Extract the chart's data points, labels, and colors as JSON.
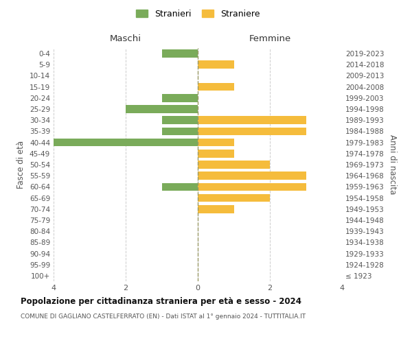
{
  "age_groups": [
    "100+",
    "95-99",
    "90-94",
    "85-89",
    "80-84",
    "75-79",
    "70-74",
    "65-69",
    "60-64",
    "55-59",
    "50-54",
    "45-49",
    "40-44",
    "35-39",
    "30-34",
    "25-29",
    "20-24",
    "15-19",
    "10-14",
    "5-9",
    "0-4"
  ],
  "birth_years": [
    "≤ 1923",
    "1924-1928",
    "1929-1933",
    "1934-1938",
    "1939-1943",
    "1944-1948",
    "1949-1953",
    "1954-1958",
    "1959-1963",
    "1964-1968",
    "1969-1973",
    "1974-1978",
    "1979-1983",
    "1984-1988",
    "1989-1993",
    "1994-1998",
    "1999-2003",
    "2004-2008",
    "2009-2013",
    "2014-2018",
    "2019-2023"
  ],
  "males": [
    0,
    0,
    0,
    0,
    0,
    0,
    0,
    0,
    1,
    0,
    0,
    0,
    4,
    1,
    1,
    2,
    1,
    0,
    0,
    0,
    1
  ],
  "females": [
    0,
    0,
    0,
    0,
    0,
    0,
    1,
    2,
    3,
    3,
    2,
    1,
    1,
    3,
    3,
    0,
    0,
    1,
    0,
    1,
    0
  ],
  "male_color": "#7aab5a",
  "female_color": "#f5bc3c",
  "xlim": 4,
  "title": "Popolazione per cittadinanza straniera per età e sesso - 2024",
  "subtitle": "COMUNE DI GAGLIANO CASTELFERRATO (EN) - Dati ISTAT al 1° gennaio 2024 - TUTTITALIA.IT",
  "legend_stranieri": "Stranieri",
  "legend_straniere": "Straniere",
  "xlabel_left": "Maschi",
  "xlabel_right": "Femmine",
  "ylabel_left": "Fasce di età",
  "ylabel_right": "Anni di nascita",
  "bg_color": "#ffffff",
  "grid_color": "#cccccc",
  "bar_height": 0.72
}
